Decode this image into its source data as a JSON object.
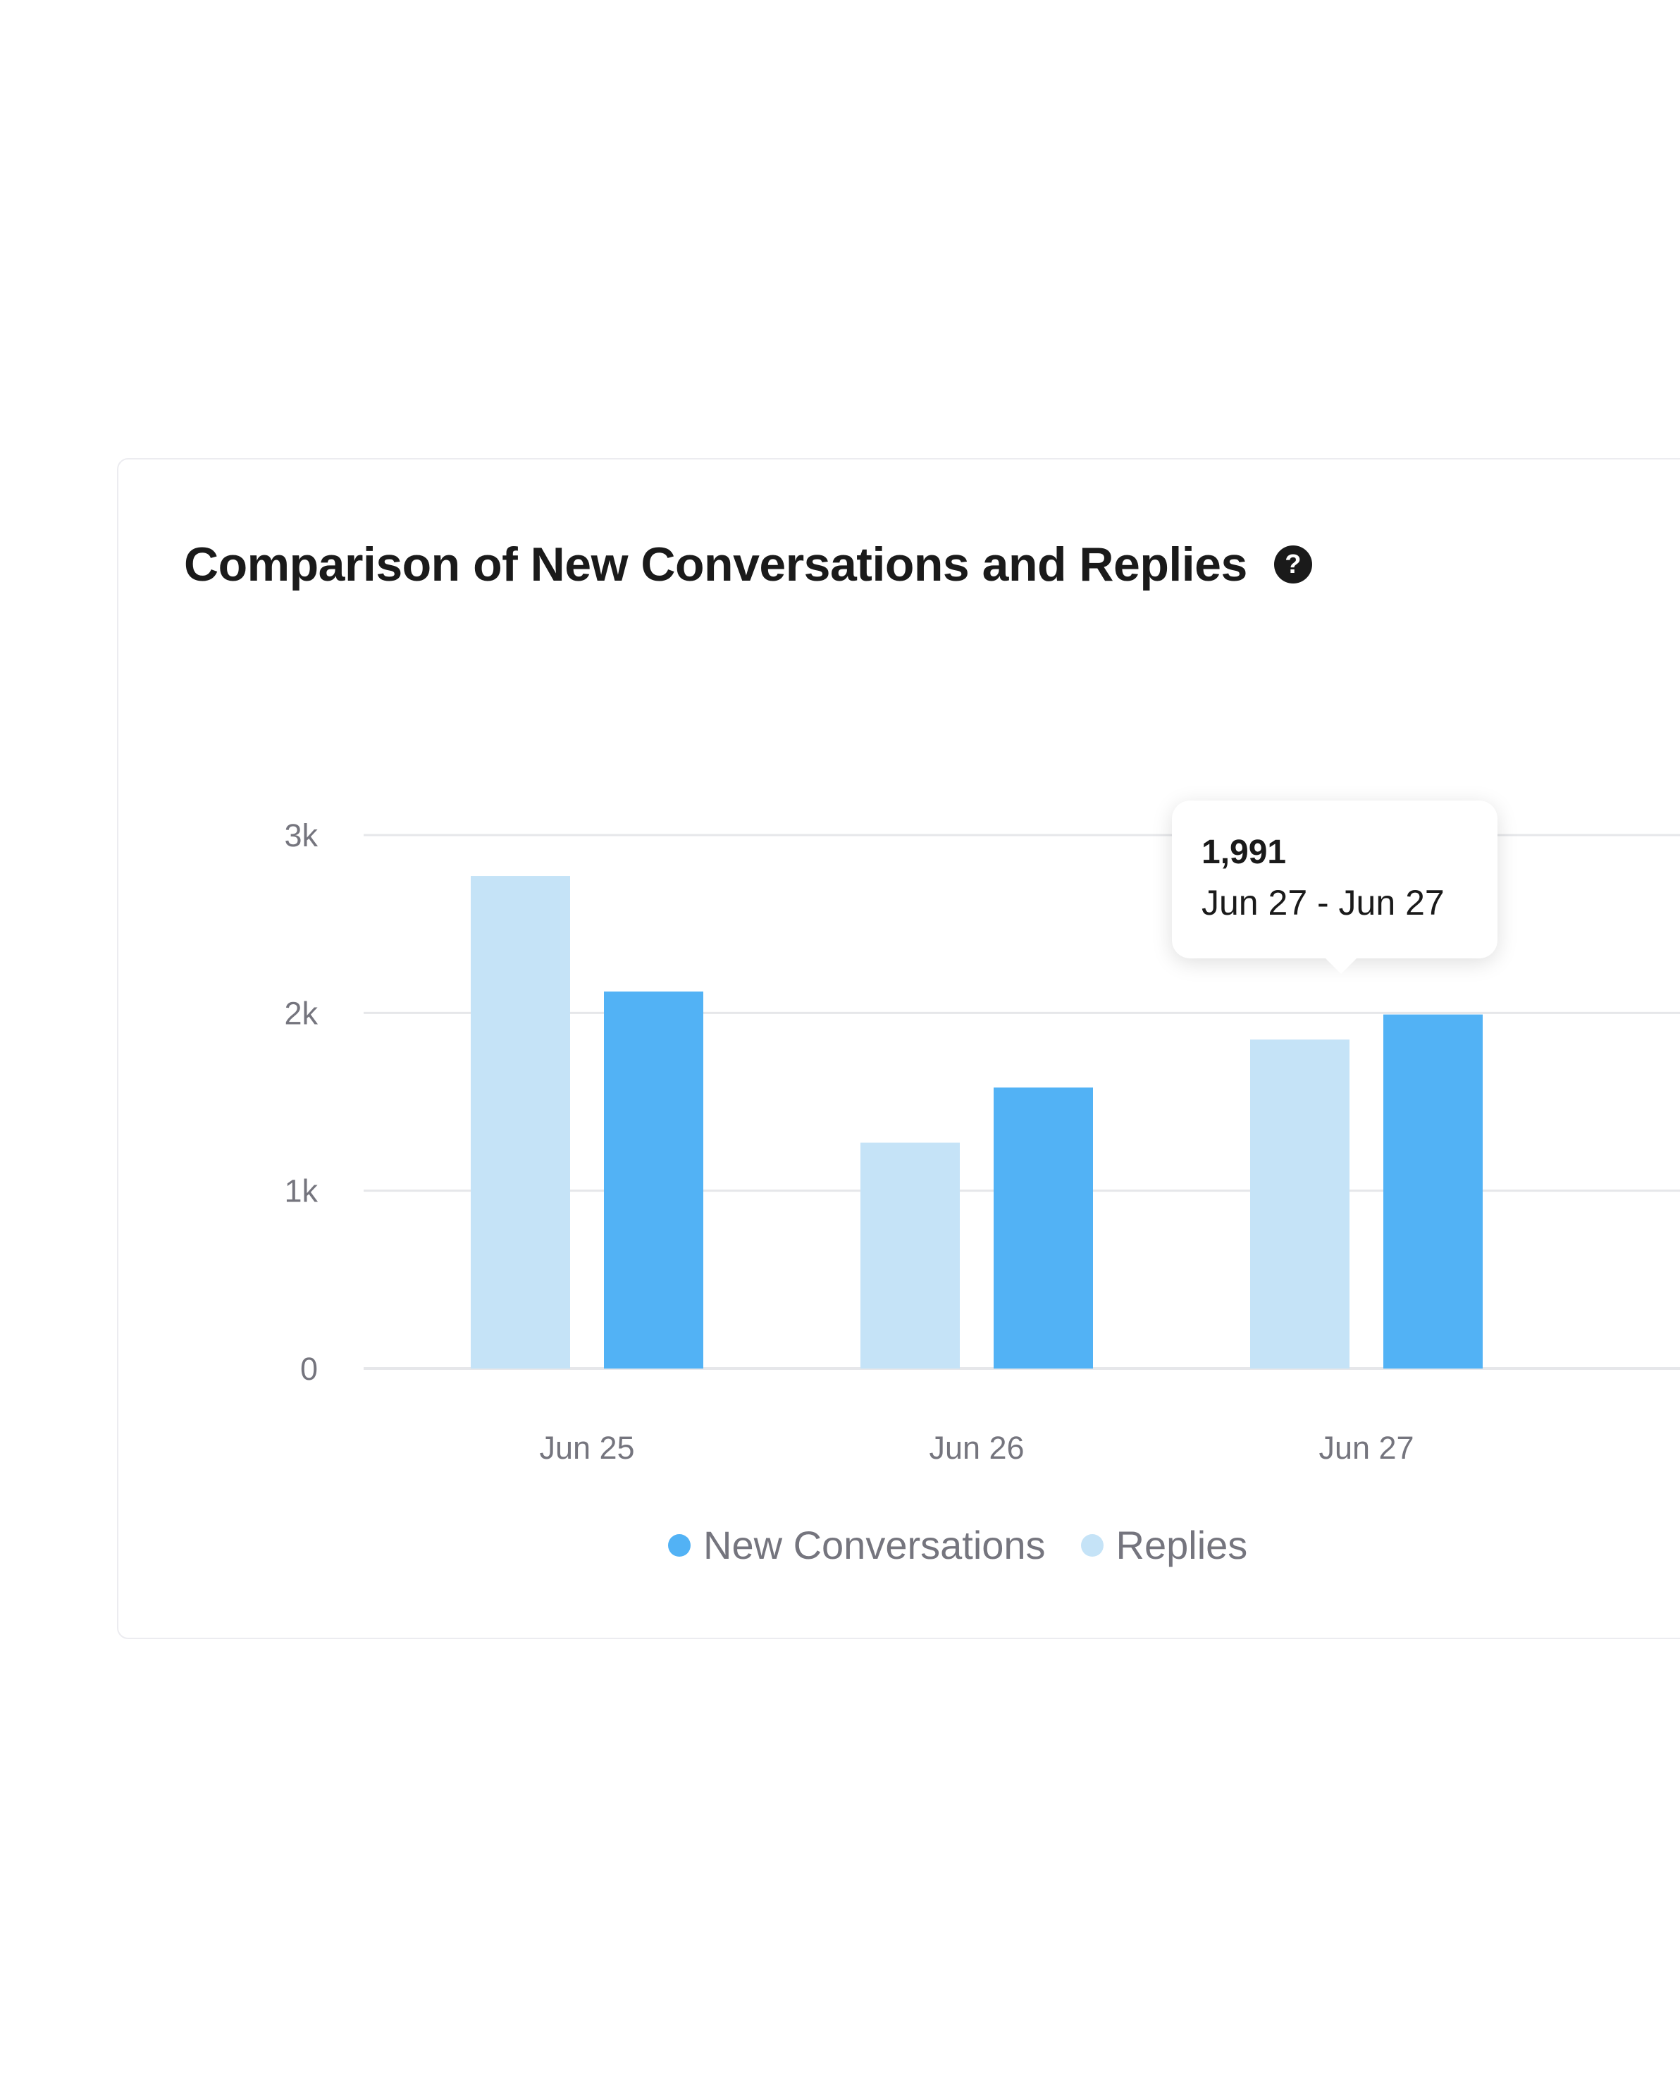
{
  "title": "Comparison of New Conversations and Replies",
  "help_icon": "question-circle-icon",
  "colors": {
    "new_conversations": "#52b2f5",
    "replies": "#c5e3f7",
    "grid": "#e6e7ea",
    "axis_text": "#75757e",
    "title_text": "#1a1a1a"
  },
  "tooltip": {
    "value": "1,991",
    "range": "Jun 27 - Jun 27"
  },
  "legend": {
    "items": [
      {
        "label": "New Conversations"
      },
      {
        "label": "Replies"
      }
    ]
  },
  "chart_data": {
    "type": "bar",
    "title": "Comparison of New Conversations and Replies",
    "xlabel": "",
    "ylabel": "",
    "categories": [
      "Jun 25",
      "Jun 26",
      "Jun 27"
    ],
    "series": [
      {
        "name": "Replies",
        "values": [
          2770,
          1270,
          1850
        ]
      },
      {
        "name": "New Conversations",
        "values": [
          2120,
          1580,
          1991
        ]
      }
    ],
    "ylim": [
      0,
      3000
    ],
    "yticks": [
      0,
      1000,
      2000,
      3000
    ],
    "ytick_labels": [
      "0",
      "1k",
      "2k",
      "3k"
    ],
    "grid": true,
    "legend_position": "bottom-center"
  }
}
